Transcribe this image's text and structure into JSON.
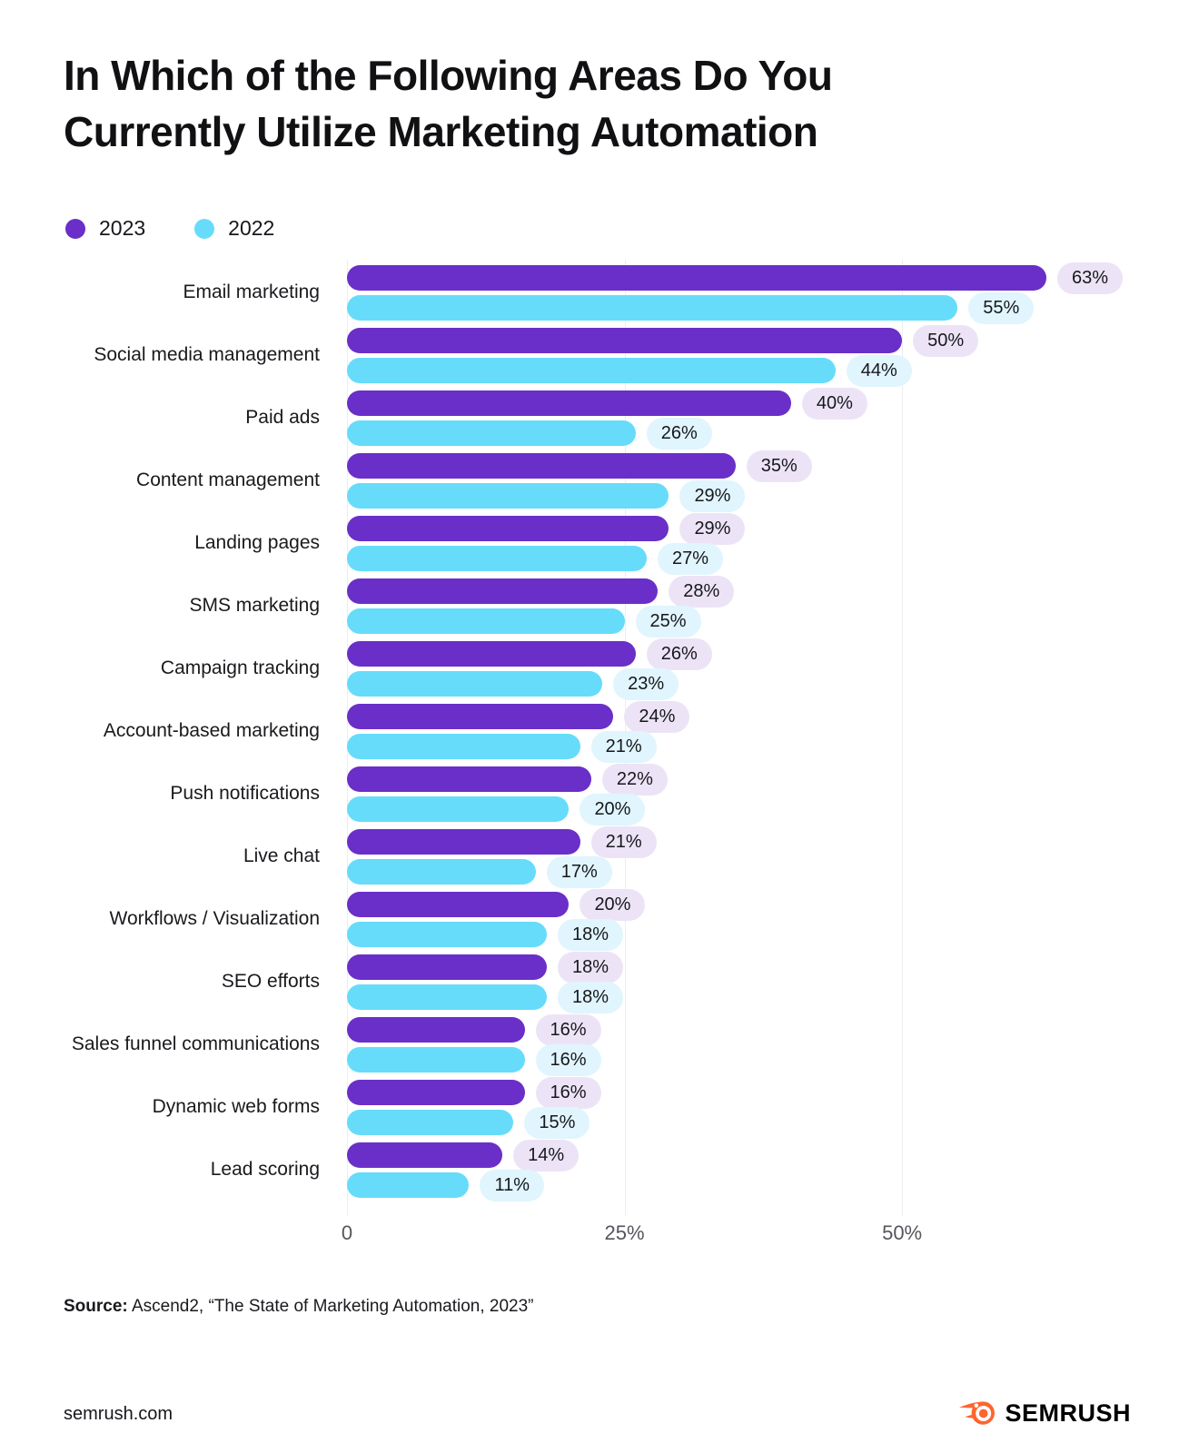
{
  "title": {
    "line1": "In Which of the Following Areas Do You",
    "line2": "Currently Utilize Marketing Automation"
  },
  "legend": {
    "items": [
      {
        "label": "2023",
        "color": "#6a2fc8"
      },
      {
        "label": "2022",
        "color": "#66dcfa"
      }
    ]
  },
  "chart_data": {
    "type": "bar",
    "orientation": "horizontal",
    "title": "In Which of the Following Areas Do You Currently Utilize Marketing Automation",
    "categories": [
      "Email marketing",
      "Social media management",
      "Paid ads",
      "Content management",
      "Landing pages",
      "SMS marketing",
      "Campaign tracking",
      "Account-based marketing",
      "Push notifications",
      "Live chat",
      "Workflows / Visualization",
      "SEO efforts",
      "Sales funnel communications",
      "Dynamic web forms",
      "Lead scoring"
    ],
    "series": [
      {
        "name": "2023",
        "color": "#6a2fc8",
        "pill_color": "#ece4f6",
        "values": [
          63,
          50,
          40,
          35,
          29,
          28,
          26,
          24,
          22,
          21,
          20,
          18,
          16,
          16,
          14
        ]
      },
      {
        "name": "2022",
        "color": "#66dcfa",
        "pill_color": "#e0f5fd",
        "values": [
          55,
          44,
          26,
          29,
          27,
          25,
          23,
          21,
          20,
          17,
          18,
          18,
          16,
          15,
          11
        ]
      }
    ],
    "value_suffix": "%",
    "x_ticks": [
      "0",
      "25%",
      "50%"
    ],
    "x_tick_values": [
      0,
      25,
      50
    ],
    "xlim": [
      0,
      72
    ],
    "grid": true,
    "legend_position": "top-left"
  },
  "source": {
    "prefix": "Source:",
    "text": " Ascend2, “The State of Marketing Automation, 2023”"
  },
  "footer": {
    "site": "semrush.com",
    "brand": "SEMRUSH",
    "brand_color": "#ff642d"
  }
}
